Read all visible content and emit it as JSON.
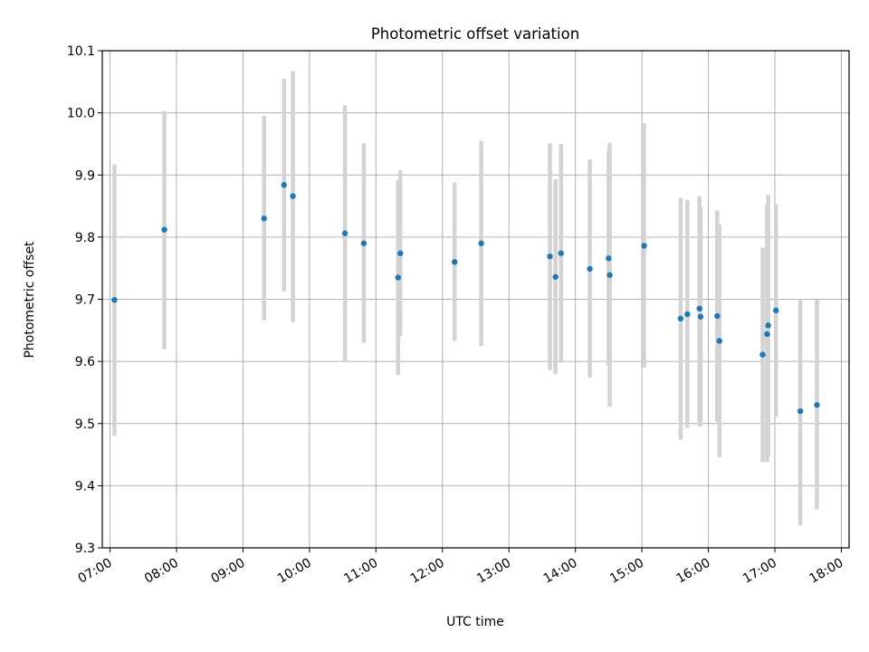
{
  "chart_data": {
    "type": "scatter",
    "title": "Photometric offset variation",
    "xlabel": "UTC time",
    "ylabel": "Photometric offset",
    "x_axis_kind": "time",
    "xlim": [
      "06:53",
      "18:07"
    ],
    "ylim": [
      9.3,
      10.1
    ],
    "x_ticks": [
      "07:00",
      "08:00",
      "09:00",
      "10:00",
      "11:00",
      "12:00",
      "13:00",
      "14:00",
      "15:00",
      "16:00",
      "17:00",
      "18:00"
    ],
    "y_ticks": [
      "9.3",
      "9.4",
      "9.5",
      "9.6",
      "9.7",
      "9.8",
      "9.9",
      "10.0",
      "10.1"
    ],
    "grid": true,
    "legend": "none",
    "marker_color": "#1f77b4",
    "errorbar_color": "#d3d3d3",
    "points": [
      {
        "t": "07:04",
        "y": 9.699,
        "lo": 9.48,
        "hi": 9.917
      },
      {
        "t": "07:49",
        "y": 9.812,
        "lo": 9.62,
        "hi": 10.003
      },
      {
        "t": "09:19",
        "y": 9.83,
        "lo": 9.666,
        "hi": 9.995
      },
      {
        "t": "09:37",
        "y": 9.884,
        "lo": 9.713,
        "hi": 10.055
      },
      {
        "t": "09:45",
        "y": 9.866,
        "lo": 9.663,
        "hi": 10.067
      },
      {
        "t": "10:32",
        "y": 9.806,
        "lo": 9.601,
        "hi": 10.012
      },
      {
        "t": "10:49",
        "y": 9.79,
        "lo": 9.63,
        "hi": 9.951
      },
      {
        "t": "11:20",
        "y": 9.735,
        "lo": 9.578,
        "hi": 9.892
      },
      {
        "t": "11:22",
        "y": 9.774,
        "lo": 9.641,
        "hi": 9.908
      },
      {
        "t": "12:11",
        "y": 9.76,
        "lo": 9.633,
        "hi": 9.888
      },
      {
        "t": "12:35",
        "y": 9.79,
        "lo": 9.625,
        "hi": 9.955
      },
      {
        "t": "13:37",
        "y": 9.769,
        "lo": 9.586,
        "hi": 9.951
      },
      {
        "t": "13:42",
        "y": 9.736,
        "lo": 9.58,
        "hi": 9.893
      },
      {
        "t": "13:47",
        "y": 9.774,
        "lo": 9.598,
        "hi": 9.95
      },
      {
        "t": "14:13",
        "y": 9.749,
        "lo": 9.574,
        "hi": 9.925
      },
      {
        "t": "14:30",
        "y": 9.766,
        "lo": 9.593,
        "hi": 9.939
      },
      {
        "t": "14:31",
        "y": 9.739,
        "lo": 9.527,
        "hi": 9.952
      },
      {
        "t": "15:02",
        "y": 9.786,
        "lo": 9.59,
        "hi": 9.983
      },
      {
        "t": "15:35",
        "y": 9.669,
        "lo": 9.474,
        "hi": 9.863
      },
      {
        "t": "15:41",
        "y": 9.676,
        "lo": 9.493,
        "hi": 9.86
      },
      {
        "t": "15:52",
        "y": 9.685,
        "lo": 9.496,
        "hi": 9.866
      },
      {
        "t": "15:53",
        "y": 9.672,
        "lo": 9.495,
        "hi": 9.849
      },
      {
        "t": "16:08",
        "y": 9.673,
        "lo": 9.503,
        "hi": 9.843
      },
      {
        "t": "16:10",
        "y": 9.633,
        "lo": 9.446,
        "hi": 9.82
      },
      {
        "t": "16:49",
        "y": 9.611,
        "lo": 9.438,
        "hi": 9.783
      },
      {
        "t": "16:53",
        "y": 9.644,
        "lo": 9.438,
        "hi": 9.853
      },
      {
        "t": "16:54",
        "y": 9.658,
        "lo": 9.448,
        "hi": 9.868
      },
      {
        "t": "17:01",
        "y": 9.682,
        "lo": 9.511,
        "hi": 9.853
      },
      {
        "t": "17:23",
        "y": 9.52,
        "lo": 9.336,
        "hi": 9.701
      },
      {
        "t": "17:38",
        "y": 9.53,
        "lo": 9.362,
        "hi": 9.699
      }
    ]
  }
}
